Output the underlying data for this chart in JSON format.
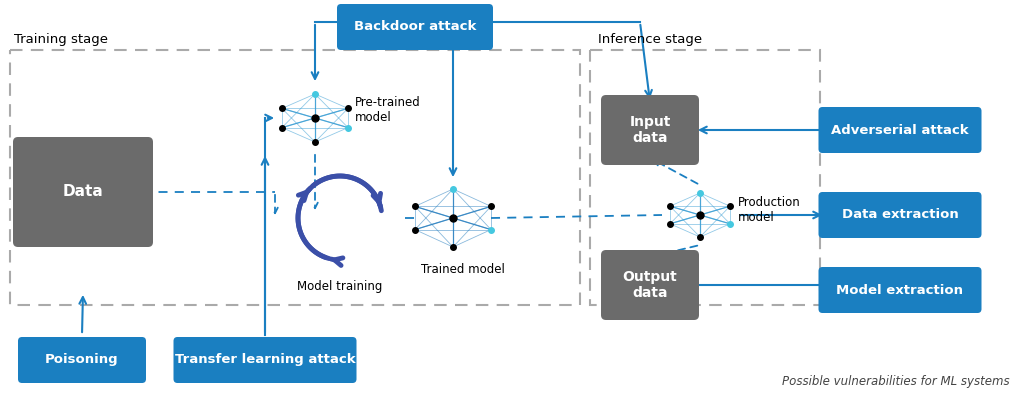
{
  "bg_color": "#ffffff",
  "blue_color": "#1a7fc1",
  "gray_color": "#6b6b6b",
  "dashed_color": "#aaaaaa",
  "arrow_color": "#1a7fc1",
  "cycle_color": "#3b4fa8",
  "training_label": "Training stage",
  "inference_label": "Inference stage",
  "caption": "Possible vulnerabilities for ML systems",
  "figsize": [
    10.24,
    4.0
  ],
  "dpi": 100
}
